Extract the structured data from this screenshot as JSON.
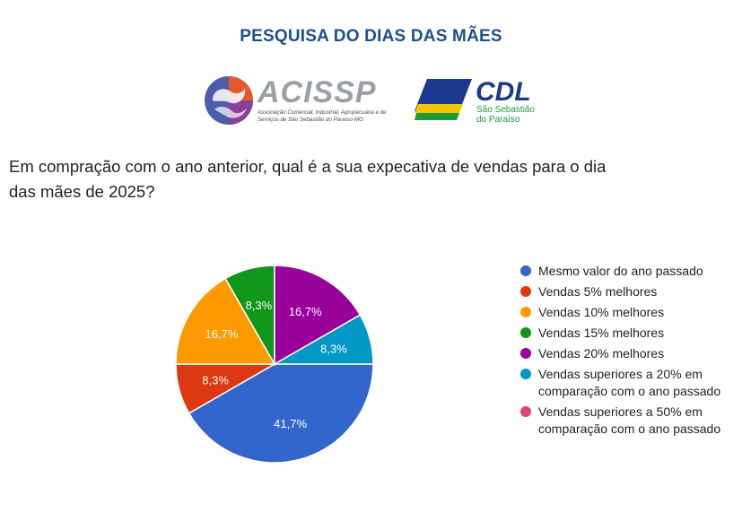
{
  "page": {
    "title": "PESQUISA DO DIAS DAS MÃES",
    "question": "Em compração com o ano anterior, qual é a sua expecativa de vendas para o dia das mães de 2025?"
  },
  "logos": {
    "acissp": {
      "name": "ACISSP",
      "subtitle": "Associação Comercial, Industrial, Agropecuária e de Serviços de São Sebastião do Paraíso-MG"
    },
    "cdl": {
      "name": "CDL",
      "subtitle": "São Sebastião do Paraíso"
    }
  },
  "chart_data": {
    "type": "pie",
    "title": "",
    "legend_placement": "right",
    "slices": [
      {
        "label": "Mesmo valor do ano passado",
        "value": 41.7,
        "data_label": "41,7%",
        "color": "#3366cc"
      },
      {
        "label": "Vendas 5% melhores",
        "value": 8.3,
        "data_label": "8,3%",
        "color": "#dc3912"
      },
      {
        "label": "Vendas 10% melhores",
        "value": 16.7,
        "data_label": "16,7%",
        "color": "#ff9900"
      },
      {
        "label": "Vendas 15% melhores",
        "value": 8.3,
        "data_label": "8,3%",
        "color": "#109618"
      },
      {
        "label": "Vendas 20% melhores",
        "value": 16.7,
        "data_label": "16,7%",
        "color": "#990099"
      },
      {
        "label": "Vendas superiores a 20% em comparação com o ano passado",
        "value": 8.3,
        "data_label": "8,3%",
        "color": "#0099c6"
      },
      {
        "label": "Vendas superiores a 50% em comparação com o ano passado",
        "value": 0,
        "data_label": "",
        "color": "#dd4477"
      }
    ]
  }
}
